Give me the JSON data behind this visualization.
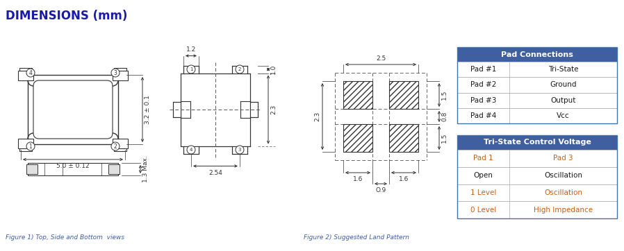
{
  "title": "DIMENSIONS (mm)",
  "title_color": "#1a1a1a",
  "title_fontsize": 12,
  "fig_bg": "#ffffff",
  "blue_header": "#3F5FA0",
  "table1_title": "Pad Connections",
  "table1_rows": [
    [
      "Pad #1",
      "Tri-State"
    ],
    [
      "Pad #2",
      "Ground"
    ],
    [
      "Pad #3",
      "Output"
    ],
    [
      "Pad #4",
      "Vcc"
    ]
  ],
  "table2_title": "Tri-State Control Voltage",
  "table2_rows": [
    [
      "Pad 1",
      "Pad 3"
    ],
    [
      "Open",
      "Oscillation"
    ],
    [
      "1 Level",
      "Oscillation"
    ],
    [
      "0 Level",
      "High Impedance"
    ]
  ],
  "caption1": "Figure 1) Top, Side and Bottom  views",
  "caption2": "Figure 2) Suggested Land Pattern",
  "caption_color": "#3F5FA0",
  "line_color": "#333333"
}
